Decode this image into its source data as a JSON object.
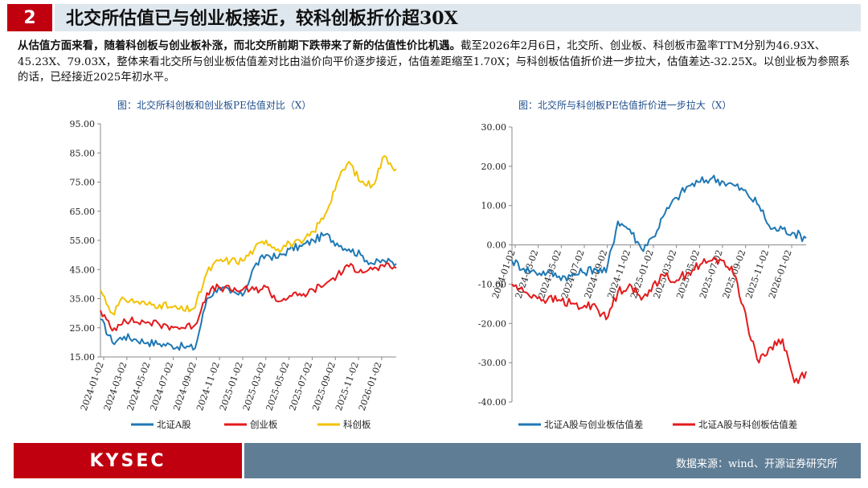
{
  "header": {
    "section_number": "2",
    "title": "北交所估值已与创业板接近，较科创板折价超30X"
  },
  "paragraph": {
    "bold_part": "从估值方面来看，随着科创板与创业板补涨，而北交所前期下跌带来了新的估值性价比机遇。",
    "normal_part": "截至2026年2月6日，北交所、创业板、科创板市盈率TTM分别为46.93X、45.23X、79.03X，整体来看北交所与创业板估值差对比由溢价向平价逐步接近，估值差距缩至1.70X；与科创板估值折价进一步拉大，估值差达-32.25X。以创业板为参照系的话，已经接近2025年初水平。"
  },
  "footer": {
    "logo": "KYSEC",
    "source": "数据来源：wind、开源证券研究所"
  },
  "colors": {
    "brand_red": "#c0000f",
    "bse": "#1f78b4",
    "chinext": "#e31a1c",
    "star": "#f2c200"
  },
  "chart_data": [
    {
      "type": "line",
      "title": "图：北交所科创板和创业板PE估值对比（X）",
      "ylim": [
        15,
        95
      ],
      "yticks": [
        "15.00",
        "25.00",
        "35.00",
        "45.00",
        "55.00",
        "65.00",
        "75.00",
        "85.00",
        "95.00"
      ],
      "x_labels": [
        "2024-01-02",
        "2024-03-02",
        "2024-05-02",
        "2024-07-02",
        "2024-09-02",
        "2024-11-02",
        "2025-01-02",
        "2025-03-02",
        "2025-05-02",
        "2025-07-02",
        "2025-09-02",
        "2025-11-02",
        "2026-01-02"
      ],
      "x": [
        "2024-01",
        "2024-02",
        "2024-03",
        "2024-04",
        "2024-05",
        "2024-06",
        "2024-07",
        "2024-08",
        "2024-09",
        "2024-10",
        "2024-11",
        "2024-12",
        "2025-01",
        "2025-02",
        "2025-03",
        "2025-04",
        "2025-05",
        "2025-06",
        "2025-07",
        "2025-08",
        "2025-09",
        "2025-10",
        "2025-11",
        "2025-12",
        "2026-01",
        "2026-02"
      ],
      "legend_position": "bottom",
      "series": [
        {
          "name": "北证A股",
          "values": [
            28,
            20,
            22,
            21,
            20,
            19.5,
            19,
            18.5,
            18,
            35,
            39,
            37,
            36,
            46,
            50,
            49,
            52,
            53,
            55,
            57,
            54,
            52,
            50,
            47,
            48,
            47
          ]
        },
        {
          "name": "创业板",
          "values": [
            31,
            24,
            28,
            27,
            27,
            26,
            25.5,
            25,
            26,
            37,
            39,
            38,
            38,
            38,
            39,
            34,
            36,
            36,
            38,
            40,
            43,
            46,
            45,
            45,
            46,
            45.5
          ]
        },
        {
          "name": "科创板",
          "values": [
            38,
            30,
            35,
            34,
            33,
            33,
            32,
            31,
            32,
            44,
            48,
            48,
            48,
            52,
            55,
            52,
            54,
            54,
            58,
            64,
            75,
            82,
            75,
            74,
            84,
            79.5
          ]
        }
      ]
    },
    {
      "type": "line",
      "title": "图：北交所与科创板PE估值折价进一步拉大（X）",
      "ylim": [
        -40,
        30
      ],
      "yticks": [
        "-40.00",
        "-30.00",
        "-20.00",
        "-10.00",
        "0.00",
        "10.00",
        "20.00",
        "30.00"
      ],
      "x_labels": [
        "2024-01-02",
        "2024-03-02",
        "2024-05-02",
        "2024-07-02",
        "2024-09-02",
        "2024-11-02",
        "2025-01-02",
        "2025-03-02",
        "2025-05-02",
        "2025-07-02",
        "2025-09-02",
        "2025-11-02",
        "2026-01-02"
      ],
      "x": [
        "2024-01",
        "2024-02",
        "2024-03",
        "2024-04",
        "2024-05",
        "2024-06",
        "2024-07",
        "2024-08",
        "2024-09",
        "2024-10",
        "2024-11",
        "2024-12",
        "2025-01",
        "2025-02",
        "2025-03",
        "2025-04",
        "2025-05",
        "2025-06",
        "2025-07",
        "2025-08",
        "2025-09",
        "2025-10",
        "2025-11",
        "2025-12",
        "2026-01",
        "2026-02"
      ],
      "legend_position": "bottom",
      "series": [
        {
          "name": "北证A股与创业板估值差",
          "values": [
            -4,
            -6,
            -7,
            -7,
            -8,
            -8,
            -7,
            -6,
            -7,
            6,
            4,
            -1,
            2,
            8,
            12,
            15,
            16,
            17,
            16,
            15,
            13,
            10,
            4,
            4,
            3,
            1.7
          ]
        },
        {
          "name": "北证A股与科创板估值差",
          "values": [
            -10,
            -12,
            -13,
            -14,
            -14,
            -15,
            -16,
            -15,
            -19,
            -12,
            -10,
            -14,
            -10,
            -8,
            -9,
            -7,
            -5,
            -4,
            -4,
            -8,
            -20,
            -30,
            -26,
            -24,
            -35,
            -32.25
          ]
        }
      ]
    }
  ]
}
